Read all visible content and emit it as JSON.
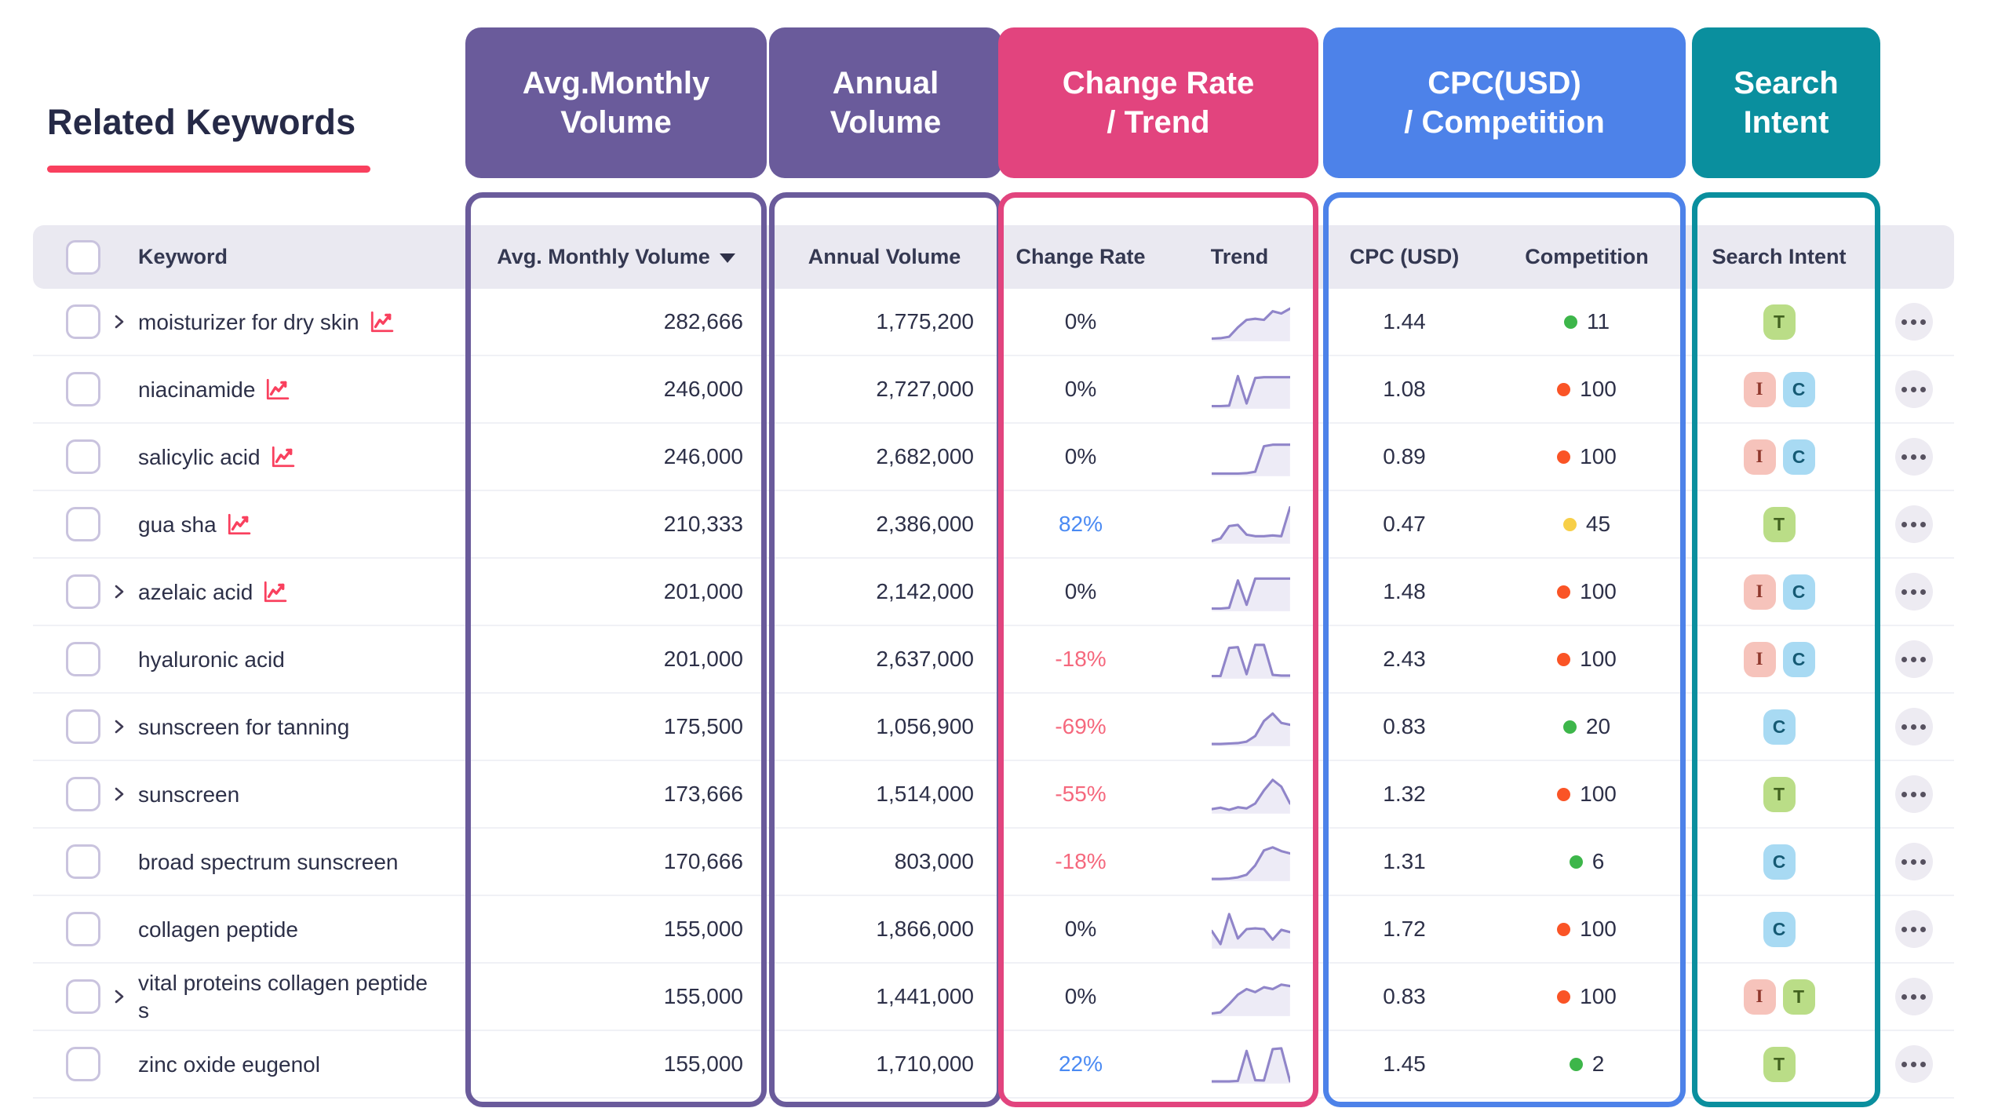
{
  "page": {
    "title": "Related Keywords",
    "underline_color": "#f9405e"
  },
  "header_badges": [
    {
      "line1": "Avg.Monthly",
      "line2": "Volume",
      "color": "#6a5b9b"
    },
    {
      "line1": "Annual",
      "line2": "Volume",
      "color": "#6a5b9b"
    },
    {
      "line1": "Change Rate",
      "line2": "/ Trend",
      "color": "#e2447e"
    },
    {
      "line1": "CPC(USD)",
      "line2": "/ Competition",
      "color": "#4d82e9"
    },
    {
      "line1": "Search",
      "line2": "Intent",
      "color": "#0a8f9e"
    }
  ],
  "table": {
    "columns": {
      "keyword": "Keyword",
      "avg_monthly": "Avg. Monthly Volume",
      "sort_caret": "▼",
      "annual": "Annual Volume",
      "change": "Change Rate",
      "trend": "Trend",
      "cpc": "CPC (USD)",
      "competition": "Competition",
      "intent": "Search Intent"
    },
    "rows": [
      {
        "keyword": "moisturizer for dry skin",
        "expandable": true,
        "chart_icon": true,
        "avg_monthly": "282,666",
        "annual": "1,775,200",
        "change": "0%",
        "change_dir": "flat",
        "cpc": "1.44",
        "competition": "11",
        "competition_level": "low",
        "intents": [
          "T"
        ],
        "trend": [
          0.05,
          0.06,
          0.1,
          0.35,
          0.55,
          0.58,
          0.55,
          0.78,
          0.72,
          0.85
        ]
      },
      {
        "keyword": "niacinamide",
        "expandable": false,
        "chart_icon": true,
        "avg_monthly": "246,000",
        "annual": "2,727,000",
        "change": "0%",
        "change_dir": "flat",
        "cpc": "1.08",
        "competition": "100",
        "competition_level": "high",
        "intents": [
          "I",
          "C"
        ],
        "trend": [
          0.05,
          0.05,
          0.06,
          0.85,
          0.12,
          0.8,
          0.82,
          0.82,
          0.82,
          0.82
        ]
      },
      {
        "keyword": "salicylic acid",
        "expandable": false,
        "chart_icon": true,
        "avg_monthly": "246,000",
        "annual": "2,682,000",
        "change": "0%",
        "change_dir": "flat",
        "cpc": "0.89",
        "competition": "100",
        "competition_level": "high",
        "intents": [
          "I",
          "C"
        ],
        "trend": [
          0.05,
          0.05,
          0.05,
          0.05,
          0.06,
          0.1,
          0.78,
          0.82,
          0.82,
          0.82
        ]
      },
      {
        "keyword": "gua sha",
        "expandable": false,
        "chart_icon": true,
        "avg_monthly": "210,333",
        "annual": "2,386,000",
        "change": "82%",
        "change_dir": "up",
        "cpc": "0.47",
        "competition": "45",
        "competition_level": "medium",
        "intents": [
          "T"
        ],
        "trend": [
          0.05,
          0.12,
          0.45,
          0.48,
          0.22,
          0.18,
          0.18,
          0.2,
          0.18,
          0.95
        ]
      },
      {
        "keyword": "azelaic acid",
        "expandable": true,
        "chart_icon": true,
        "avg_monthly": "201,000",
        "annual": "2,142,000",
        "change": "0%",
        "change_dir": "flat",
        "cpc": "1.48",
        "competition": "100",
        "competition_level": "high",
        "intents": [
          "I",
          "C"
        ],
        "trend": [
          0.05,
          0.05,
          0.07,
          0.8,
          0.15,
          0.85,
          0.85,
          0.85,
          0.85,
          0.85
        ]
      },
      {
        "keyword": "hyaluronic acid",
        "expandable": false,
        "chart_icon": false,
        "avg_monthly": "201,000",
        "annual": "2,637,000",
        "change": "-18%",
        "change_dir": "down",
        "cpc": "2.43",
        "competition": "100",
        "competition_level": "high",
        "intents": [
          "I",
          "C"
        ],
        "trend": [
          0.05,
          0.05,
          0.8,
          0.82,
          0.1,
          0.88,
          0.88,
          0.08,
          0.06,
          0.06
        ]
      },
      {
        "keyword": "sunscreen for tanning",
        "expandable": true,
        "chart_icon": false,
        "avg_monthly": "175,500",
        "annual": "1,056,900",
        "change": "-69%",
        "change_dir": "down",
        "cpc": "0.83",
        "competition": "20",
        "competition_level": "low",
        "intents": [
          "C"
        ],
        "trend": [
          0.04,
          0.04,
          0.05,
          0.06,
          0.1,
          0.25,
          0.65,
          0.85,
          0.6,
          0.55
        ]
      },
      {
        "keyword": "sunscreen",
        "expandable": true,
        "chart_icon": false,
        "avg_monthly": "173,666",
        "annual": "1,514,000",
        "change": "-55%",
        "change_dir": "down",
        "cpc": "1.32",
        "competition": "100",
        "competition_level": "high",
        "intents": [
          "T"
        ],
        "trend": [
          0.1,
          0.14,
          0.08,
          0.15,
          0.12,
          0.25,
          0.6,
          0.88,
          0.7,
          0.25
        ]
      },
      {
        "keyword": "broad spectrum sunscreen",
        "expandable": false,
        "chart_icon": false,
        "avg_monthly": "170,666",
        "annual": "803,000",
        "change": "-18%",
        "change_dir": "down",
        "cpc": "1.31",
        "competition": "6",
        "competition_level": "low",
        "intents": [
          "C"
        ],
        "trend": [
          0.04,
          0.04,
          0.05,
          0.08,
          0.15,
          0.4,
          0.8,
          0.88,
          0.78,
          0.72
        ]
      },
      {
        "keyword": "collagen peptide",
        "expandable": false,
        "chart_icon": false,
        "avg_monthly": "155,000",
        "annual": "1,866,000",
        "change": "0%",
        "change_dir": "flat",
        "cpc": "1.72",
        "competition": "100",
        "competition_level": "high",
        "intents": [
          "C"
        ],
        "trend": [
          0.45,
          0.1,
          0.9,
          0.25,
          0.5,
          0.52,
          0.5,
          0.22,
          0.48,
          0.42
        ]
      },
      {
        "keyword": "vital proteins collagen peptides",
        "expandable": true,
        "chart_icon": false,
        "avg_monthly": "155,000",
        "annual": "1,441,000",
        "change": "0%",
        "change_dir": "flat",
        "cpc": "0.83",
        "competition": "100",
        "competition_level": "high",
        "intents": [
          "I",
          "T"
        ],
        "trend": [
          0.05,
          0.08,
          0.3,
          0.55,
          0.7,
          0.62,
          0.75,
          0.7,
          0.82,
          0.78
        ]
      },
      {
        "keyword": "zinc oxide eugenol",
        "expandable": false,
        "chart_icon": false,
        "avg_monthly": "155,000",
        "annual": "1,710,000",
        "change": "22%",
        "change_dir": "up",
        "cpc": "1.45",
        "competition": "2",
        "competition_level": "low",
        "intents": [
          "T"
        ],
        "trend": [
          0.04,
          0.04,
          0.04,
          0.05,
          0.85,
          0.07,
          0.06,
          0.9,
          0.92,
          0.04
        ]
      }
    ]
  },
  "intent_styles": {
    "T": {
      "bg": "#badd87",
      "fg": "#41611f"
    },
    "I": {
      "bg": "#f6c3bb",
      "fg": "#8e362b"
    },
    "C": {
      "bg": "#a8daf3",
      "fg": "#155a74"
    }
  },
  "competition_colors": {
    "low": "#3db64a",
    "medium": "#f7cf48",
    "high": "#fa5426"
  },
  "accent_colors": {
    "sparkline": "#9085c9",
    "positive_change": "#4a8af3",
    "negative_change": "#f5687d",
    "keyword_chart_icon": "#f9405e"
  }
}
